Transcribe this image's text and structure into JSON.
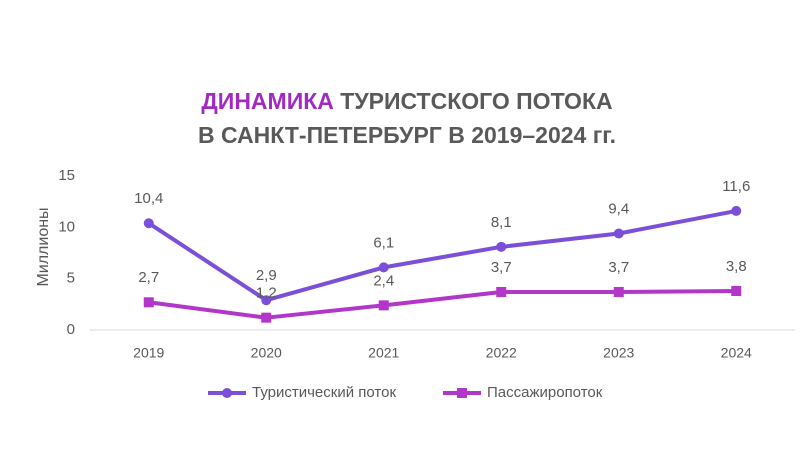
{
  "chart_data": {
    "type": "line",
    "title": {
      "highlight": "ДИНАМИКА",
      "line1": "ТУРИСТСКОГО ПОТОКА",
      "line2": "В САНКТ-ПЕТЕРБУРГ В 2019–2024 гг."
    },
    "y_label": "Миллионы",
    "categories": [
      "2019",
      "2020",
      "2021",
      "2022",
      "2023",
      "2024"
    ],
    "series": [
      {
        "name": "Туристический поток",
        "color": "#7b4fd8",
        "marker": "circle",
        "values": [
          10.4,
          2.9,
          6.1,
          8.1,
          9.4,
          11.6
        ],
        "value_labels": [
          "10,4",
          "2,9",
          "6,1",
          "8,1",
          "9,4",
          "11,6"
        ]
      },
      {
        "name": "Пассажиропоток",
        "color": "#b236c9",
        "marker": "square",
        "values": [
          2.7,
          1.2,
          2.4,
          3.7,
          3.7,
          3.8
        ],
        "value_labels": [
          "2,7",
          "1,2",
          "2,4",
          "3,7",
          "3,7",
          "3,8"
        ]
      }
    ],
    "ylim": [
      0,
      15
    ],
    "yticks": [
      0,
      5,
      10,
      15
    ],
    "grid": false,
    "legend": "bottom"
  }
}
